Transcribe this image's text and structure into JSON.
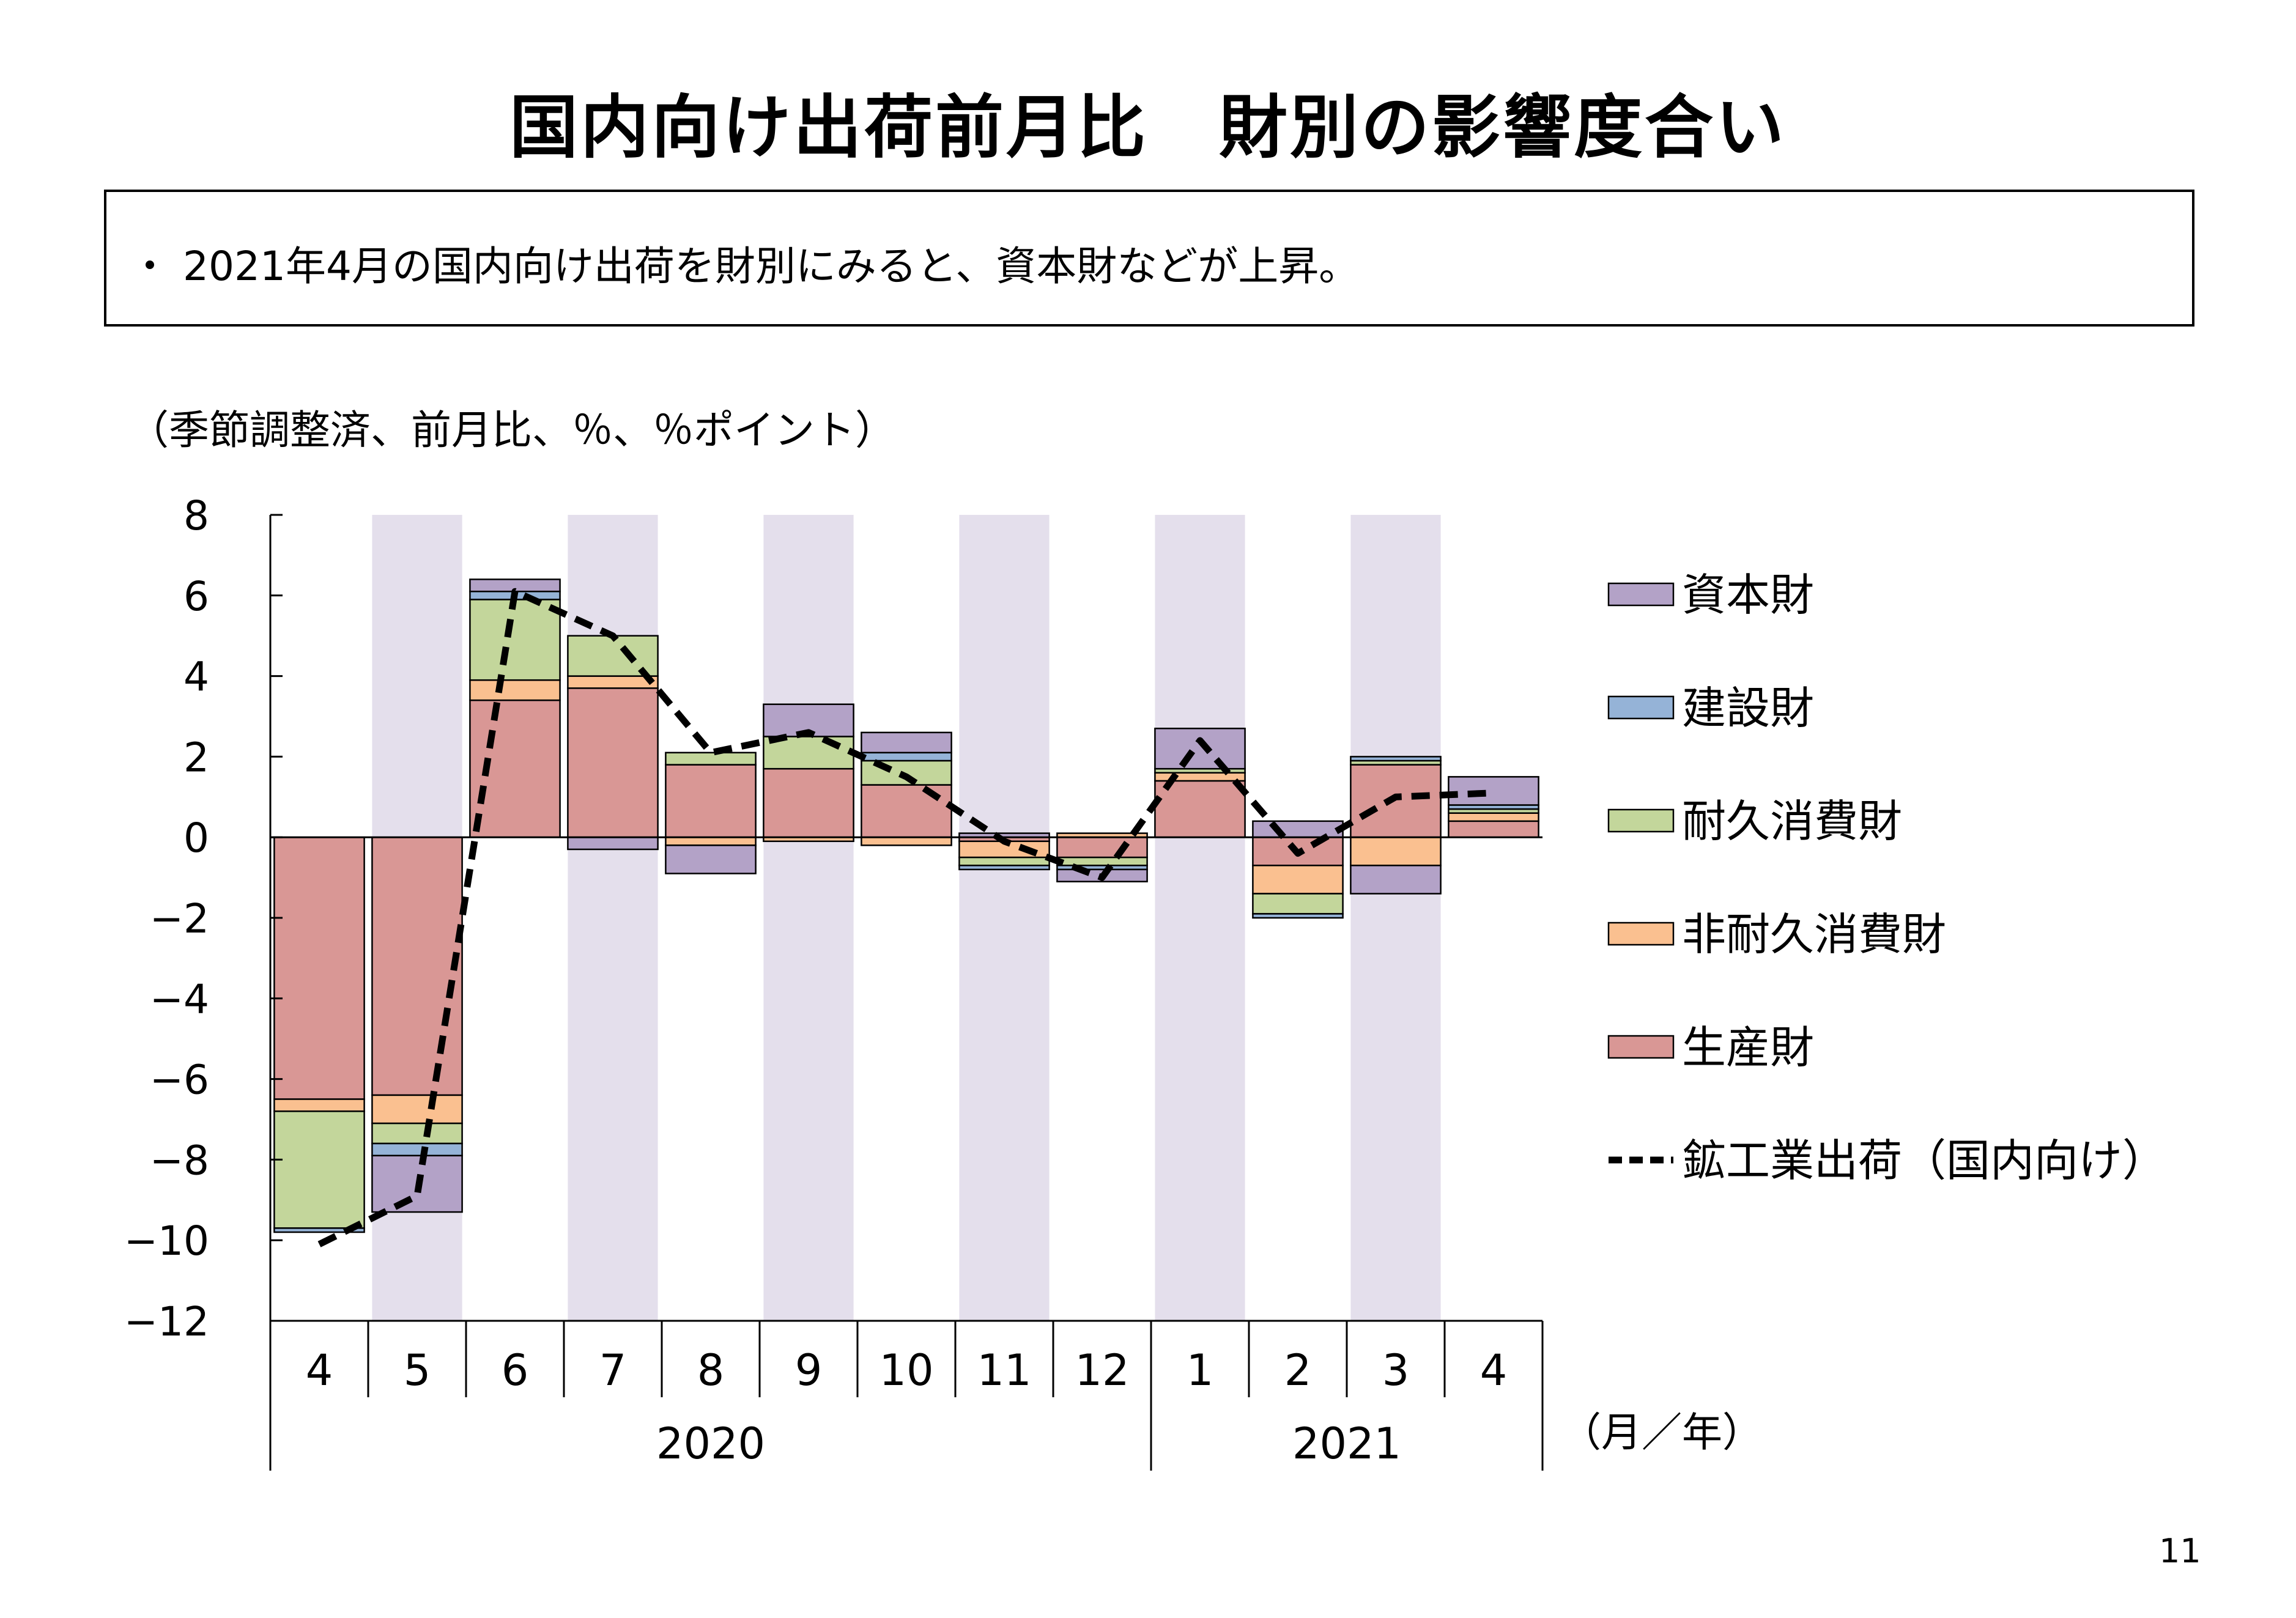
{
  "title": "国内向け出荷前月比　財別の影響度合い",
  "summary": "・ 2021年4月の国内向け出荷を財別にみると、資本財などが上昇。",
  "unit_note": "（季節調整済、前月比、％、％ポイント）",
  "page_number": "11",
  "colors": {
    "capital": "#b3a2c7",
    "construction": "#95b3d7",
    "durable": "#c3d69b",
    "nondurable": "#fac090",
    "production": "#d99795",
    "line": "#000000",
    "shade": "#e4dfec"
  },
  "chart_data": {
    "type": "bar",
    "stacked": true,
    "categories": [
      "4",
      "5",
      "6",
      "7",
      "8",
      "9",
      "10",
      "11",
      "12",
      "1",
      "2",
      "3",
      "4"
    ],
    "year_groups": [
      {
        "label": "2020",
        "from": 0,
        "to": 8
      },
      {
        "label": "2021",
        "from": 9,
        "to": 12
      }
    ],
    "x_unit_label": "（月／年）",
    "shaded_categories": [
      1,
      3,
      5,
      7,
      9,
      11
    ],
    "ylim": [
      -12,
      8
    ],
    "yticks": [
      "8",
      "6",
      "4",
      "2",
      "0",
      "−2",
      "−4",
      "−6",
      "−8",
      "−10",
      "−12"
    ],
    "ytick_values": [
      8,
      6,
      4,
      2,
      0,
      -2,
      -4,
      -6,
      -8,
      -10,
      -12
    ],
    "series": [
      {
        "name": "生産財",
        "key": "production",
        "values": [
          -6.5,
          -6.4,
          3.4,
          3.7,
          1.8,
          1.7,
          1.3,
          -0.1,
          -0.5,
          1.4,
          -0.7,
          1.8,
          0.4
        ]
      },
      {
        "name": "非耐久消費財",
        "key": "nondurable",
        "values": [
          -0.3,
          -0.7,
          0.5,
          0.3,
          -0.2,
          -0.1,
          -0.2,
          -0.4,
          0.1,
          0.2,
          -0.7,
          -0.7,
          0.2
        ]
      },
      {
        "name": "耐久消費財",
        "key": "durable",
        "values": [
          -2.9,
          -0.5,
          2.0,
          1.0,
          0.3,
          0.8,
          0.6,
          -0.2,
          -0.2,
          0.1,
          -0.5,
          0.1,
          0.1
        ]
      },
      {
        "name": "建設財",
        "key": "construction",
        "values": [
          -0.1,
          -0.3,
          0.2,
          0.0,
          0.0,
          0.0,
          0.2,
          -0.1,
          -0.1,
          0.0,
          -0.1,
          0.1,
          0.1
        ]
      },
      {
        "name": "資本財",
        "key": "capital",
        "values": [
          0.0,
          -1.4,
          0.3,
          -0.3,
          -0.7,
          0.8,
          0.5,
          0.1,
          -0.3,
          1.0,
          0.4,
          -0.7,
          0.7
        ]
      }
    ],
    "line": {
      "name": "鉱工業出荷（国内向け）",
      "values": [
        -10.1,
        -8.9,
        6.1,
        5.0,
        2.1,
        2.6,
        1.5,
        -0.1,
        -1.0,
        2.4,
        -0.4,
        1.0,
        1.1
      ]
    }
  }
}
